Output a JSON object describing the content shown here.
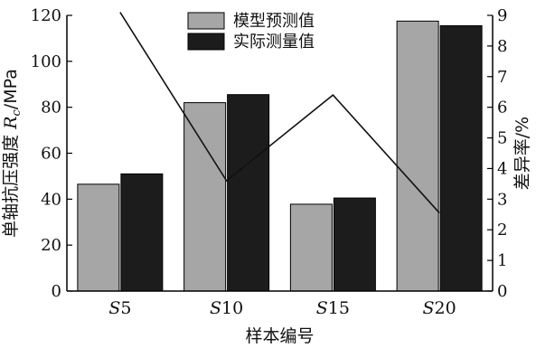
{
  "chart_data": {
    "type": "bar",
    "categories": [
      "S5",
      "S10",
      "S15",
      "S20"
    ],
    "series": [
      {
        "name": "模型预测值",
        "values": [
          46.5,
          82,
          37.8,
          117.5
        ],
        "color": "#a6a6a6"
      },
      {
        "name": "实际测量值",
        "values": [
          51,
          85.5,
          40.5,
          115.5
        ],
        "color": "#1c1c1c"
      }
    ],
    "line_series": {
      "values": [
        9.1,
        3.6,
        6.4,
        2.55
      ],
      "axis": "right",
      "color": "#111111"
    },
    "xlabel": "样本编号",
    "ylabel": "单轴抗压强度 Rc/MPa",
    "ylabel_parts": {
      "text": "单轴抗压强度 ",
      "var": "R",
      "sub": "c",
      "unit": "/MPa"
    },
    "y2label": "差异率/%",
    "ylim": [
      0,
      120
    ],
    "yticks": [
      "0",
      "20",
      "40",
      "60",
      "80",
      "100",
      "120"
    ],
    "y2lim": [
      0,
      9
    ],
    "y2ticks": [
      "0",
      "1",
      "2",
      "3",
      "4",
      "5",
      "6",
      "7",
      "8",
      "9"
    ],
    "legend_position": "top-center",
    "grid": false
  }
}
